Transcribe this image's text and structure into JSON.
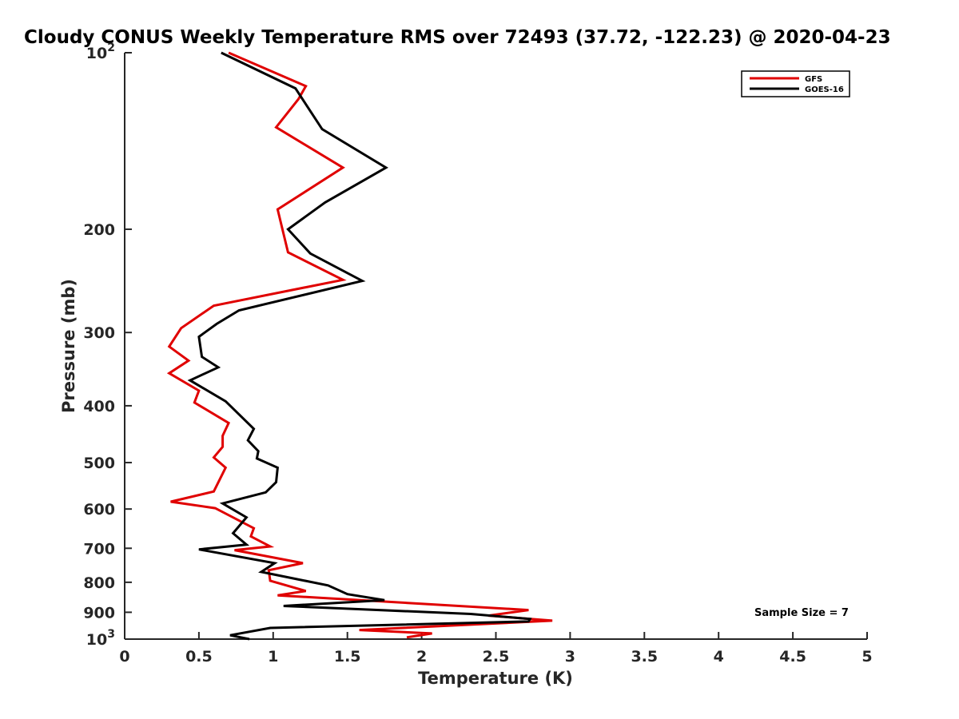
{
  "chart_data": {
    "type": "line",
    "title": "Cloudy CONUS Weekly Temperature RMS over 72493 (37.72, -122.23) @ 2020-04-23",
    "xlabel": "Temperature (K)",
    "ylabel": "Pressure (mb)",
    "xlim": [
      0,
      5
    ],
    "ylim": [
      100,
      1000
    ],
    "y_scale": "log",
    "y_reversed": true,
    "grid": false,
    "legend_position": "top-right",
    "x_ticks": [
      {
        "value": 0,
        "label": "0"
      },
      {
        "value": 0.5,
        "label": "0.5"
      },
      {
        "value": 1,
        "label": "1"
      },
      {
        "value": 1.5,
        "label": "1.5"
      },
      {
        "value": 2,
        "label": "2"
      },
      {
        "value": 2.5,
        "label": "2.5"
      },
      {
        "value": 3,
        "label": "3"
      },
      {
        "value": 3.5,
        "label": "3.5"
      },
      {
        "value": 4,
        "label": "4"
      },
      {
        "value": 4.5,
        "label": "4.5"
      },
      {
        "value": 5,
        "label": "5"
      }
    ],
    "y_ticks": [
      {
        "value": 100,
        "label": "10",
        "sup": "2"
      },
      {
        "value": 200,
        "label": "200",
        "sup": ""
      },
      {
        "value": 300,
        "label": "300",
        "sup": ""
      },
      {
        "value": 400,
        "label": "400",
        "sup": ""
      },
      {
        "value": 500,
        "label": "500",
        "sup": ""
      },
      {
        "value": 600,
        "label": "600",
        "sup": ""
      },
      {
        "value": 700,
        "label": "700",
        "sup": ""
      },
      {
        "value": 800,
        "label": "800",
        "sup": ""
      },
      {
        "value": 900,
        "label": "900",
        "sup": ""
      },
      {
        "value": 1000,
        "label": "10",
        "sup": "3"
      }
    ],
    "series": [
      {
        "name": "GFS",
        "color": "#e00000",
        "points": [
          [
            0.7,
            100
          ],
          [
            1.22,
            114
          ],
          [
            1.17,
            120
          ],
          [
            1.02,
            134
          ],
          [
            1.47,
            157
          ],
          [
            1.03,
            185
          ],
          [
            1.1,
            219
          ],
          [
            1.47,
            244
          ],
          [
            0.6,
            270
          ],
          [
            0.38,
            295
          ],
          [
            0.3,
            317
          ],
          [
            0.43,
            335
          ],
          [
            0.3,
            352
          ],
          [
            0.5,
            377
          ],
          [
            0.47,
            395
          ],
          [
            0.7,
            428
          ],
          [
            0.66,
            450
          ],
          [
            0.66,
            470
          ],
          [
            0.6,
            490
          ],
          [
            0.68,
            510
          ],
          [
            0.6,
            560
          ],
          [
            0.31,
            583
          ],
          [
            0.61,
            598
          ],
          [
            0.87,
            647
          ],
          [
            0.85,
            668
          ],
          [
            0.98,
            695
          ],
          [
            0.74,
            705
          ],
          [
            1.2,
            742
          ],
          [
            0.97,
            763
          ],
          [
            0.98,
            795
          ],
          [
            1.22,
            828
          ],
          [
            1.03,
            842
          ],
          [
            2.72,
            892
          ],
          [
            2.45,
            912
          ],
          [
            2.88,
            930
          ],
          [
            1.58,
            965
          ],
          [
            2.07,
            978
          ],
          [
            1.9,
            993
          ]
        ]
      },
      {
        "name": "GOES-16",
        "color": "#000000",
        "points": [
          [
            0.65,
            100
          ],
          [
            1.15,
            115
          ],
          [
            1.33,
            135
          ],
          [
            1.76,
            157
          ],
          [
            1.35,
            180
          ],
          [
            1.1,
            200
          ],
          [
            1.25,
            220
          ],
          [
            1.6,
            245
          ],
          [
            0.77,
            275
          ],
          [
            0.62,
            290
          ],
          [
            0.5,
            305
          ],
          [
            0.52,
            330
          ],
          [
            0.63,
            344
          ],
          [
            0.44,
            362
          ],
          [
            0.68,
            393
          ],
          [
            0.87,
            438
          ],
          [
            0.83,
            458
          ],
          [
            0.9,
            478
          ],
          [
            0.89,
            492
          ],
          [
            1.03,
            510
          ],
          [
            1.02,
            540
          ],
          [
            0.95,
            562
          ],
          [
            0.66,
            587
          ],
          [
            0.82,
            620
          ],
          [
            0.73,
            660
          ],
          [
            0.82,
            690
          ],
          [
            0.5,
            703
          ],
          [
            1.01,
            742
          ],
          [
            0.92,
            768
          ],
          [
            1.37,
            810
          ],
          [
            1.5,
            838
          ],
          [
            1.75,
            858
          ],
          [
            1.07,
            878
          ],
          [
            2.33,
            906
          ],
          [
            2.73,
            924
          ],
          [
            2.72,
            933
          ],
          [
            0.98,
            957
          ],
          [
            0.71,
            985
          ],
          [
            0.84,
            1000
          ]
        ]
      }
    ],
    "annotation": "Sample Size = 7"
  }
}
